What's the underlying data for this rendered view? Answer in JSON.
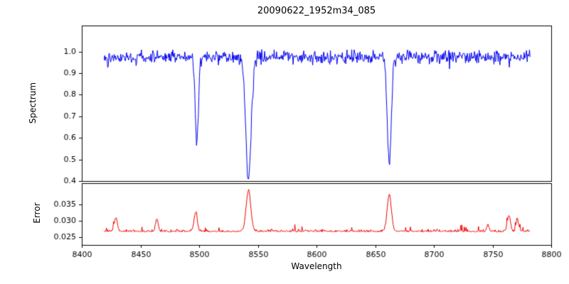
{
  "chart_data": {
    "type": "line",
    "title": "20090622_1952m34_085",
    "xlabel": "Wavelength",
    "x_range": [
      8400,
      8800
    ],
    "data_x_range": [
      8419,
      8782
    ],
    "n_points": 720,
    "seed": 42,
    "x_ticks": [
      8400,
      8450,
      8500,
      8550,
      8600,
      8650,
      8700,
      8750,
      8800
    ],
    "x_tick_labels": [
      "8400",
      "8450",
      "8500",
      "8550",
      "8600",
      "8650",
      "8700",
      "8750",
      "8800"
    ],
    "grid": false,
    "legend": "none",
    "panels": [
      {
        "ylabel": "Spectrum",
        "ylim": [
          0.4,
          1.12
        ],
        "yticks": [
          0.4,
          0.5,
          0.6,
          0.7,
          0.8,
          0.9,
          1.0
        ],
        "ytick_labels": [
          "0.4",
          "0.5",
          "0.6",
          "0.7",
          "0.8",
          "0.9",
          "1.0"
        ],
        "series": [
          {
            "name": "spectrum",
            "kind": "spectrum",
            "color": "#0000ee",
            "continuum": 0.975,
            "noise_sigma": 0.015,
            "dip_prob": 0.06,
            "dip_amp": 0.05,
            "clip_min": 0.41,
            "clip_max": 1.06,
            "absorption_lines": [
              {
                "center": 8498,
                "depth": 0.37,
                "width": 1.4
              },
              {
                "center": 8542,
                "depth": 0.58,
                "width": 2.2
              },
              {
                "center": 8662,
                "depth": 0.49,
                "width": 1.8
              }
            ]
          }
        ]
      },
      {
        "ylabel": "Error",
        "ylim": [
          0.0225,
          0.0415
        ],
        "yticks": [
          0.025,
          0.03,
          0.035
        ],
        "ytick_labels": [
          "0.025",
          "0.030",
          "0.035"
        ],
        "series": [
          {
            "name": "error",
            "kind": "error",
            "color": "#ee0000",
            "base": 0.0265,
            "noise_sigma": 0.00035,
            "spike_prob": 0.05,
            "spike_amp": 0.002,
            "peaks": [
              {
                "center": 8429,
                "amp": 0.0042,
                "width": 1.3
              },
              {
                "center": 8464,
                "amp": 0.004,
                "width": 1.1
              },
              {
                "center": 8497,
                "amp": 0.0058,
                "width": 1.4
              },
              {
                "center": 8542,
                "amp": 0.0125,
                "width": 2.0
              },
              {
                "center": 8662,
                "amp": 0.0112,
                "width": 1.8
              },
              {
                "center": 8746,
                "amp": 0.002,
                "width": 1.0
              },
              {
                "center": 8764,
                "amp": 0.005,
                "width": 1.3
              },
              {
                "center": 8771,
                "amp": 0.0038,
                "width": 1.0
              }
            ]
          }
        ]
      }
    ],
    "features": {
      "absorption_line_centers": [
        8498,
        8542,
        8662
      ],
      "absorption_line_min_values": [
        0.61,
        0.41,
        0.49
      ],
      "continuum_level": 1.0,
      "error_baseline": 0.0265,
      "error_peak_max_value": 0.039
    }
  }
}
